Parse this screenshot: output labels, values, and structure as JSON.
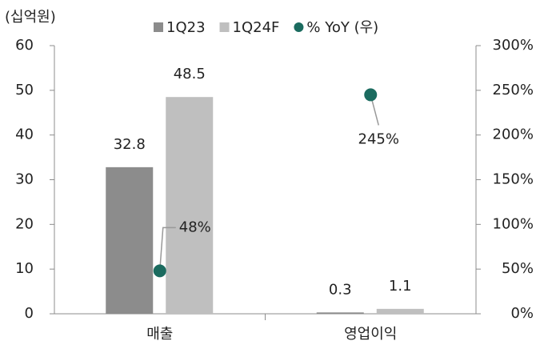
{
  "chart_data": {
    "type": "bar",
    "y_axis_label": "(십억원)",
    "categories": [
      "매출",
      "영업이익"
    ],
    "series": [
      {
        "name": "1Q23",
        "color": "#8c8c8c",
        "values": [
          32.8,
          0.3
        ]
      },
      {
        "name": "1Q24F",
        "color": "#bfbfbf",
        "values": [
          48.5,
          1.1
        ]
      },
      {
        "name": "% YoY (우)",
        "color": "#1b6b5f",
        "axis": "y2",
        "type": "scatter",
        "values": [
          48,
          245
        ],
        "value_labels": [
          "48%",
          "245%"
        ]
      }
    ],
    "ylim": [
      0,
      60
    ],
    "yticks": [
      0,
      10,
      20,
      30,
      40,
      50,
      60
    ],
    "y2lim": [
      0,
      300
    ],
    "y2ticks": [
      {
        "value": 0,
        "label": "0%"
      },
      {
        "value": 50,
        "label": "50%"
      },
      {
        "value": 100,
        "label": "100%"
      },
      {
        "value": 150,
        "label": "150%"
      },
      {
        "value": 200,
        "label": "200%"
      },
      {
        "value": 250,
        "label": "250%"
      },
      {
        "value": 300,
        "label": "300%"
      }
    ],
    "grid": false
  }
}
